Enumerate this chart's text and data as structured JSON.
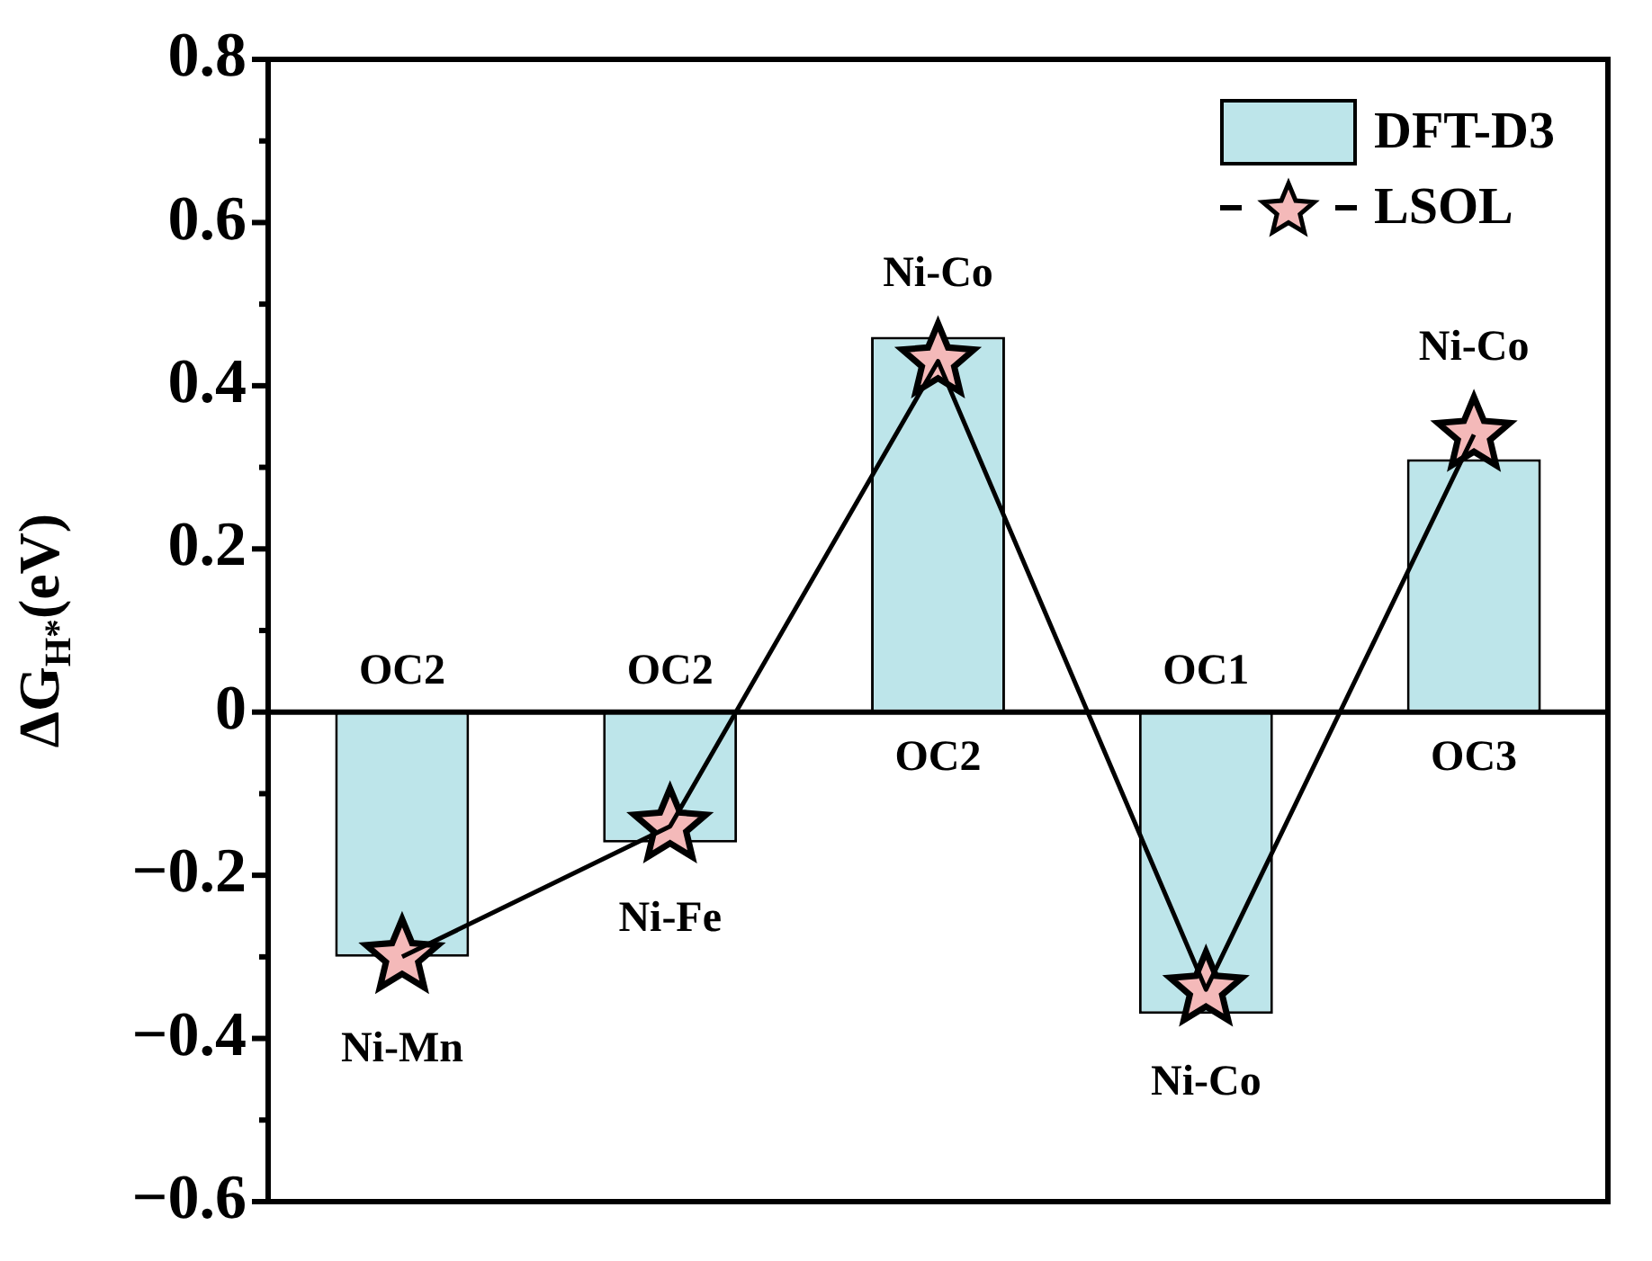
{
  "chart_data": {
    "type": "bar",
    "ylabel": "ΔG$_{H*}$(eV)",
    "categories": [
      null,
      null,
      null,
      null,
      null
    ],
    "series": [
      {
        "name": "DFT-D3",
        "color": "#bde5ea",
        "values": [
          -0.3,
          -0.16,
          0.46,
          -0.37,
          0.31
        ],
        "value_labels": [
          "OC2",
          "OC2",
          "OC2",
          "OC1",
          "OC3"
        ]
      },
      {
        "name": "LSOL",
        "type": "line",
        "color": "#f4b9b9",
        "marker": "star",
        "line_style": "solid",
        "values": [
          -0.3,
          -0.14,
          0.43,
          -0.34,
          0.34
        ],
        "value_labels": [
          "Ni-Mn",
          "Ni-Fe",
          "Ni-Co",
          "Ni-Co",
          "Ni-Co"
        ]
      }
    ],
    "ylim": [
      -0.6,
      0.8
    ],
    "yticks": [
      {
        "value": -0.6,
        "label": "−0.6"
      },
      {
        "value": -0.5,
        "label": null
      },
      {
        "value": -0.4,
        "label": "−0.4"
      },
      {
        "value": -0.3,
        "label": null
      },
      {
        "value": -0.2,
        "label": "−0.2"
      },
      {
        "value": -0.1,
        "label": null
      },
      0,
      {
        "value": 0.1,
        "label": null
      },
      0.2,
      {
        "value": 0.3,
        "label": null
      },
      0.4,
      {
        "value": 0.5,
        "label": null
      },
      0.6,
      {
        "value": 0.7,
        "label": null
      },
      0.8
    ],
    "ref_lines": [
      {
        "axis": "y",
        "value": 0,
        "color": "#000000"
      }
    ],
    "grid": false,
    "legend": "top right",
    "tick_labels": "y"
  }
}
